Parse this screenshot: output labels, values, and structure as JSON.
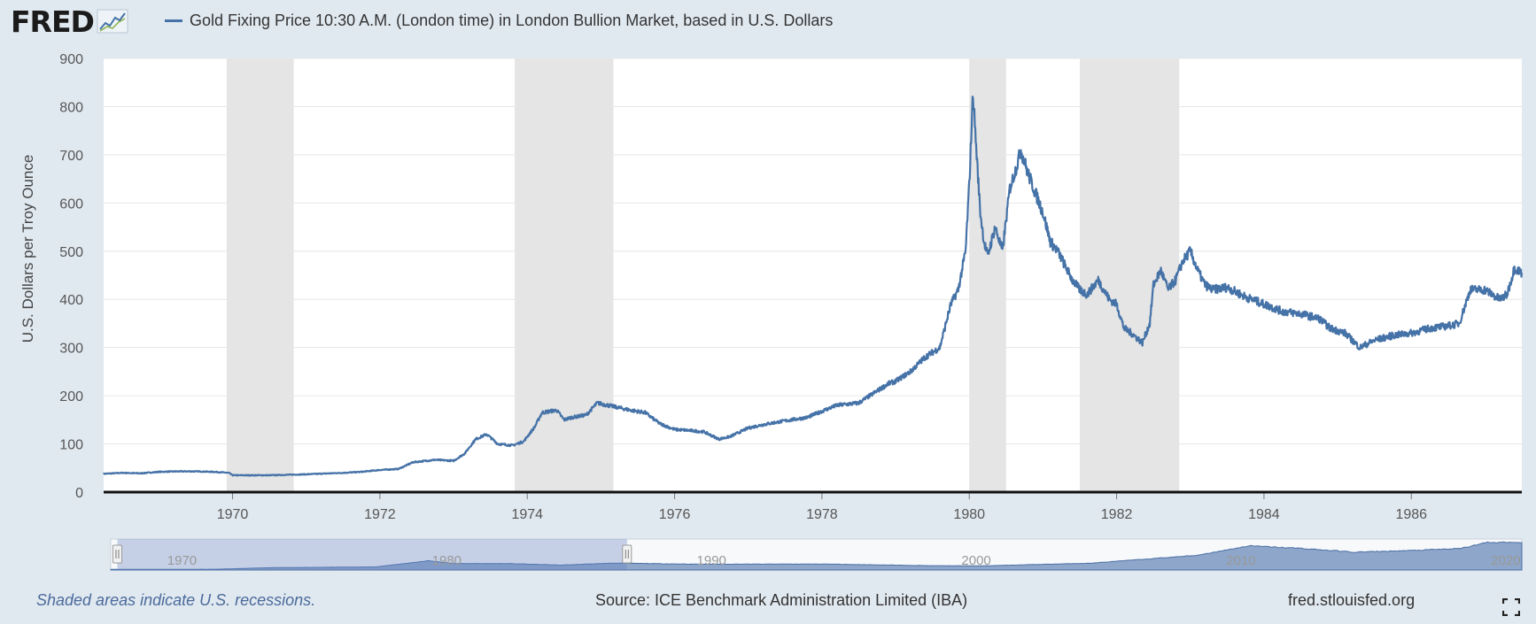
{
  "header": {
    "logo_text": "FRED",
    "legend_label": "Gold Fixing Price 10:30 A.M. (London time) in London Bullion Market, based in U.S. Dollars"
  },
  "footer": {
    "note": "Shaded areas indicate U.S. recessions.",
    "source": "Source: ICE Benchmark Administration Limited (IBA)",
    "site": "fred.stlouisfed.org"
  },
  "colors": {
    "series": "#4572a7",
    "recession": "#e5e5e5",
    "background": "#e1e9f0"
  },
  "chart_data": {
    "type": "line",
    "title": "",
    "xlabel": "",
    "ylabel": "U.S. Dollars per Troy Ounce",
    "xlim": [
      1968.25,
      1987.5
    ],
    "ylim": [
      0,
      900
    ],
    "yticks": [
      0,
      100,
      200,
      300,
      400,
      500,
      600,
      700,
      800,
      900
    ],
    "xticks": [
      1970,
      1972,
      1974,
      1976,
      1978,
      1980,
      1982,
      1984,
      1986
    ],
    "grid": true,
    "legend": "top-left",
    "recessions": [
      [
        1969.92,
        1970.83
      ],
      [
        1973.83,
        1975.17
      ],
      [
        1980.0,
        1980.5
      ],
      [
        1981.5,
        1982.85
      ]
    ],
    "series": [
      {
        "name": "Gold Fixing Price 10:30 A.M. (London time) in London Bullion Market, based in U.S. Dollars",
        "x": [
          1968.25,
          1968.5,
          1968.75,
          1969.0,
          1969.25,
          1969.5,
          1969.75,
          1969.95,
          1970.0,
          1970.5,
          1971.0,
          1971.5,
          1971.75,
          1972.0,
          1972.25,
          1972.45,
          1972.75,
          1973.0,
          1973.15,
          1973.3,
          1973.45,
          1973.6,
          1973.8,
          1973.95,
          1974.1,
          1974.2,
          1974.4,
          1974.5,
          1974.6,
          1974.8,
          1974.95,
          1975.1,
          1975.4,
          1975.6,
          1975.8,
          1976.0,
          1976.2,
          1976.4,
          1976.6,
          1976.75,
          1977.0,
          1977.2,
          1977.5,
          1977.8,
          1978.0,
          1978.2,
          1978.5,
          1978.75,
          1978.9,
          1979.0,
          1979.2,
          1979.4,
          1979.6,
          1979.75,
          1979.85,
          1979.95,
          1980.0,
          1980.05,
          1980.1,
          1980.15,
          1980.2,
          1980.25,
          1980.35,
          1980.45,
          1980.55,
          1980.65,
          1980.7,
          1980.8,
          1980.9,
          1981.0,
          1981.1,
          1981.2,
          1981.3,
          1981.4,
          1981.5,
          1981.6,
          1981.75,
          1981.9,
          1982.0,
          1982.1,
          1982.2,
          1982.35,
          1982.45,
          1982.5,
          1982.6,
          1982.7,
          1982.8,
          1982.9,
          1983.0,
          1983.1,
          1983.2,
          1983.3,
          1983.5,
          1983.75,
          1984.0,
          1984.25,
          1984.5,
          1984.75,
          1984.9,
          1985.1,
          1985.3,
          1985.5,
          1985.75,
          1986.0,
          1986.25,
          1986.5,
          1986.65,
          1986.8,
          1987.0,
          1987.2,
          1987.3,
          1987.4,
          1987.5
        ],
        "values": [
          38,
          40,
          39,
          42,
          43,
          43,
          42,
          40,
          35,
          35,
          37,
          40,
          42,
          46,
          48,
          62,
          67,
          65,
          80,
          110,
          120,
          100,
          97,
          105,
          135,
          165,
          170,
          150,
          155,
          160,
          185,
          180,
          170,
          165,
          142,
          130,
          128,
          125,
          110,
          115,
          133,
          140,
          148,
          155,
          168,
          180,
          185,
          210,
          225,
          230,
          250,
          280,
          300,
          390,
          420,
          500,
          640,
          830,
          700,
          580,
          520,
          490,
          550,
          500,
          630,
          680,
          710,
          660,
          620,
          580,
          520,
          500,
          470,
          440,
          420,
          410,
          440,
          400,
          390,
          340,
          330,
          310,
          350,
          430,
          460,
          420,
          440,
          480,
          500,
          460,
          430,
          420,
          425,
          405,
          390,
          375,
          370,
          360,
          340,
          330,
          300,
          315,
          325,
          330,
          340,
          345,
          350,
          420,
          420,
          400,
          410,
          465,
          455
        ]
      }
    ],
    "navigator": {
      "ticks": [
        "1970",
        "1980",
        "1990",
        "2000",
        "2010",
        "2020"
      ]
    }
  }
}
